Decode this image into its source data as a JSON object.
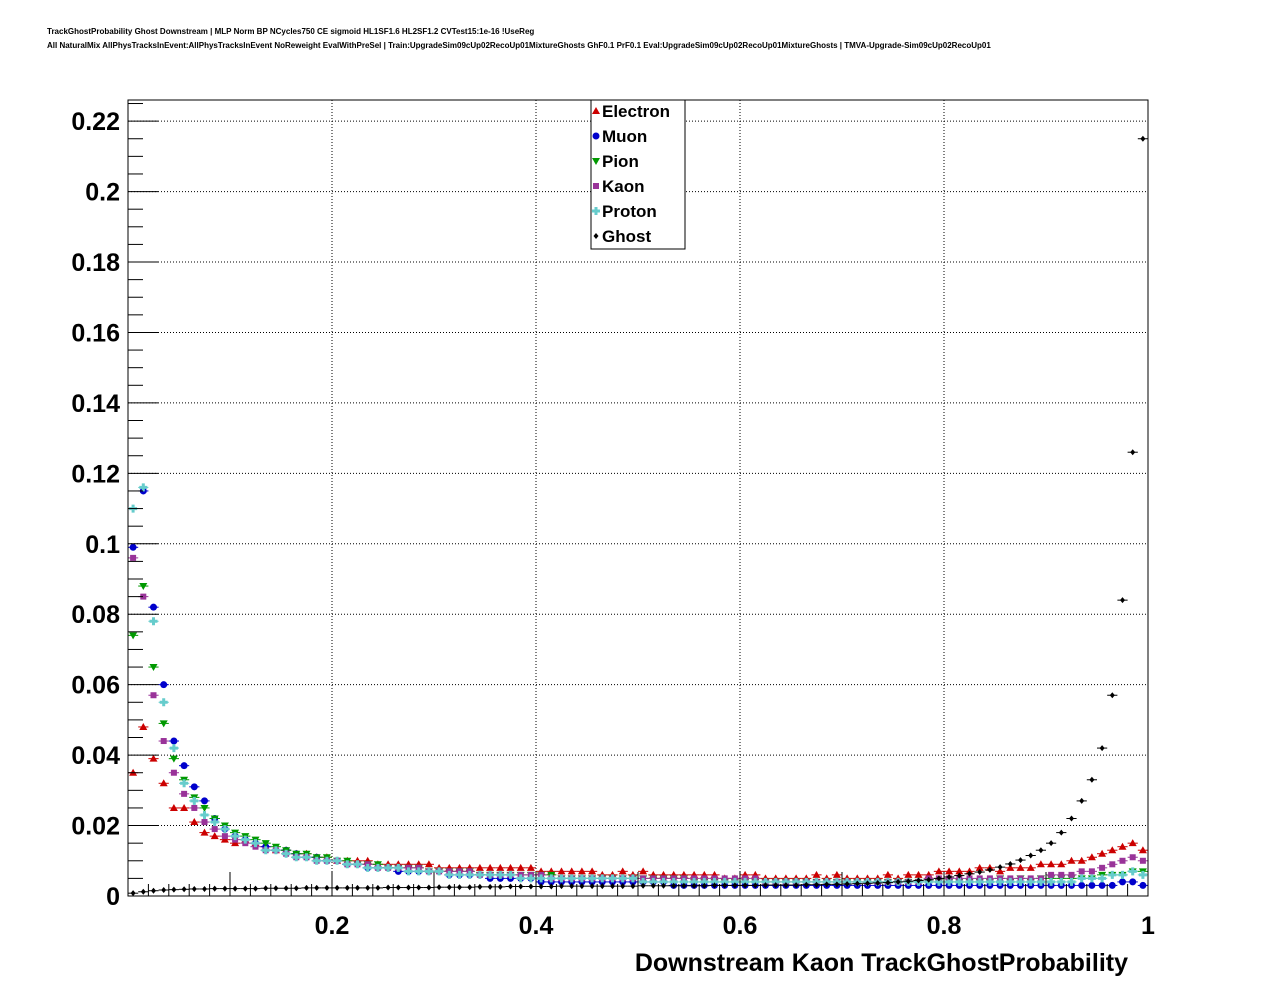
{
  "title_line1": "TrackGhostProbability Ghost Downstream | MLP Norm BP NCycles750 CE sigmoid HL1SF1.6 HL2SF1.2 CVTest15:1e-16 !UseReg",
  "title_line2": "All NaturalMix AllPhysTracksInEvent:AllPhysTracksInEvent NoReweight EvalWithPreSel | Train:UpgradeSim09cUp02RecoUp01MixtureGhosts GhF0.1 PrF0.1 Eval:UpgradeSim09cUp02RecoUp01MixtureGhosts | TMVA-Upgrade-Sim09cUp02RecoUp01",
  "chart_data": {
    "type": "scatter",
    "xlabel": "Downstream Kaon TrackGhostProbability",
    "ylabel": "",
    "xlim": [
      0,
      1
    ],
    "ylim": [
      0,
      0.226
    ],
    "xticks": [
      0.2,
      0.4,
      0.6,
      0.8,
      1.0
    ],
    "xtick_labels": [
      "0.2",
      "0.4",
      "0.6",
      "0.8",
      "1"
    ],
    "yticks": [
      0,
      0.02,
      0.04,
      0.06,
      0.08,
      0.1,
      0.12,
      0.14,
      0.16,
      0.18,
      0.2,
      0.22
    ],
    "ytick_labels": [
      "0",
      "0.02",
      "0.04",
      "0.06",
      "0.08",
      "0.1",
      "0.12",
      "0.14",
      "0.16",
      "0.18",
      "0.2",
      "0.22"
    ],
    "grid": true,
    "legend_position": "top-center",
    "x": [
      0.005,
      0.015,
      0.025,
      0.035,
      0.045,
      0.055,
      0.065,
      0.075,
      0.085,
      0.095,
      0.105,
      0.115,
      0.125,
      0.135,
      0.145,
      0.155,
      0.165,
      0.175,
      0.185,
      0.195,
      0.205,
      0.215,
      0.225,
      0.235,
      0.245,
      0.255,
      0.265,
      0.275,
      0.285,
      0.295,
      0.305,
      0.315,
      0.325,
      0.335,
      0.345,
      0.355,
      0.365,
      0.375,
      0.385,
      0.395,
      0.405,
      0.415,
      0.425,
      0.435,
      0.445,
      0.455,
      0.465,
      0.475,
      0.485,
      0.495,
      0.505,
      0.515,
      0.525,
      0.535,
      0.545,
      0.555,
      0.565,
      0.575,
      0.585,
      0.595,
      0.605,
      0.615,
      0.625,
      0.635,
      0.645,
      0.655,
      0.665,
      0.675,
      0.685,
      0.695,
      0.705,
      0.715,
      0.725,
      0.735,
      0.745,
      0.755,
      0.765,
      0.775,
      0.785,
      0.795,
      0.805,
      0.815,
      0.825,
      0.835,
      0.845,
      0.855,
      0.865,
      0.875,
      0.885,
      0.895,
      0.905,
      0.915,
      0.925,
      0.935,
      0.945,
      0.955,
      0.965,
      0.975,
      0.985,
      0.995
    ],
    "series": [
      {
        "name": "Electron",
        "color": "#cc0000",
        "marker": "triangle-up",
        "values": [
          0.035,
          0.048,
          0.039,
          0.032,
          0.025,
          0.025,
          0.021,
          0.018,
          0.017,
          0.016,
          0.015,
          0.016,
          0.015,
          0.014,
          0.013,
          0.013,
          0.012,
          0.012,
          0.011,
          0.011,
          0.01,
          0.01,
          0.01,
          0.01,
          0.009,
          0.009,
          0.009,
          0.009,
          0.009,
          0.009,
          0.008,
          0.008,
          0.008,
          0.008,
          0.008,
          0.008,
          0.008,
          0.008,
          0.008,
          0.008,
          0.007,
          0.007,
          0.007,
          0.007,
          0.007,
          0.007,
          0.006,
          0.006,
          0.007,
          0.006,
          0.007,
          0.006,
          0.006,
          0.006,
          0.006,
          0.006,
          0.006,
          0.006,
          0.005,
          0.005,
          0.006,
          0.006,
          0.005,
          0.005,
          0.005,
          0.005,
          0.005,
          0.006,
          0.005,
          0.006,
          0.005,
          0.005,
          0.005,
          0.005,
          0.006,
          0.005,
          0.006,
          0.006,
          0.006,
          0.007,
          0.007,
          0.007,
          0.007,
          0.008,
          0.008,
          0.007,
          0.008,
          0.008,
          0.008,
          0.009,
          0.009,
          0.009,
          0.01,
          0.01,
          0.011,
          0.012,
          0.013,
          0.014,
          0.015,
          0.013
        ]
      },
      {
        "name": "Muon",
        "color": "#0000cc",
        "marker": "circle",
        "values": [
          0.099,
          0.115,
          0.082,
          0.06,
          0.044,
          0.037,
          0.031,
          0.027,
          0.022,
          0.019,
          0.017,
          0.016,
          0.015,
          0.014,
          0.013,
          0.013,
          0.012,
          0.011,
          0.011,
          0.01,
          0.01,
          0.009,
          0.009,
          0.008,
          0.008,
          0.008,
          0.007,
          0.007,
          0.007,
          0.007,
          0.007,
          0.006,
          0.006,
          0.006,
          0.006,
          0.005,
          0.005,
          0.005,
          0.005,
          0.005,
          0.004,
          0.004,
          0.004,
          0.004,
          0.004,
          0.004,
          0.004,
          0.004,
          0.004,
          0.004,
          0.004,
          0.004,
          0.004,
          0.003,
          0.003,
          0.003,
          0.003,
          0.003,
          0.003,
          0.003,
          0.003,
          0.003,
          0.003,
          0.003,
          0.003,
          0.003,
          0.003,
          0.003,
          0.003,
          0.003,
          0.003,
          0.003,
          0.003,
          0.003,
          0.003,
          0.003,
          0.003,
          0.003,
          0.003,
          0.003,
          0.003,
          0.003,
          0.003,
          0.003,
          0.003,
          0.003,
          0.003,
          0.003,
          0.003,
          0.003,
          0.003,
          0.003,
          0.003,
          0.003,
          0.003,
          0.003,
          0.003,
          0.004,
          0.004,
          0.003
        ]
      },
      {
        "name": "Pion",
        "color": "#009900",
        "marker": "triangle-down",
        "values": [
          0.074,
          0.088,
          0.065,
          0.049,
          0.039,
          0.033,
          0.028,
          0.025,
          0.022,
          0.02,
          0.018,
          0.017,
          0.016,
          0.015,
          0.014,
          0.013,
          0.012,
          0.012,
          0.011,
          0.011,
          0.01,
          0.01,
          0.009,
          0.009,
          0.009,
          0.008,
          0.008,
          0.008,
          0.008,
          0.007,
          0.007,
          0.007,
          0.007,
          0.007,
          0.006,
          0.006,
          0.006,
          0.006,
          0.006,
          0.006,
          0.006,
          0.006,
          0.005,
          0.005,
          0.005,
          0.005,
          0.005,
          0.005,
          0.005,
          0.005,
          0.005,
          0.005,
          0.005,
          0.005,
          0.005,
          0.004,
          0.004,
          0.004,
          0.004,
          0.004,
          0.004,
          0.004,
          0.004,
          0.004,
          0.004,
          0.004,
          0.004,
          0.004,
          0.004,
          0.004,
          0.004,
          0.004,
          0.004,
          0.004,
          0.004,
          0.004,
          0.004,
          0.004,
          0.004,
          0.004,
          0.004,
          0.004,
          0.004,
          0.004,
          0.004,
          0.005,
          0.004,
          0.005,
          0.004,
          0.005,
          0.005,
          0.005,
          0.005,
          0.005,
          0.005,
          0.006,
          0.006,
          0.006,
          0.007,
          0.007
        ]
      },
      {
        "name": "Kaon",
        "color": "#993399",
        "marker": "square",
        "values": [
          0.096,
          0.085,
          0.057,
          0.044,
          0.035,
          0.029,
          0.025,
          0.021,
          0.019,
          0.017,
          0.016,
          0.015,
          0.014,
          0.013,
          0.013,
          0.012,
          0.011,
          0.011,
          0.01,
          0.01,
          0.01,
          0.009,
          0.009,
          0.009,
          0.008,
          0.008,
          0.008,
          0.008,
          0.008,
          0.007,
          0.007,
          0.007,
          0.007,
          0.007,
          0.006,
          0.006,
          0.006,
          0.006,
          0.006,
          0.006,
          0.006,
          0.005,
          0.005,
          0.005,
          0.005,
          0.005,
          0.005,
          0.005,
          0.005,
          0.005,
          0.005,
          0.005,
          0.005,
          0.005,
          0.005,
          0.005,
          0.005,
          0.005,
          0.005,
          0.005,
          0.005,
          0.005,
          0.004,
          0.004,
          0.004,
          0.004,
          0.004,
          0.004,
          0.004,
          0.004,
          0.004,
          0.004,
          0.004,
          0.004,
          0.004,
          0.004,
          0.004,
          0.004,
          0.005,
          0.005,
          0.005,
          0.005,
          0.005,
          0.005,
          0.005,
          0.005,
          0.005,
          0.005,
          0.005,
          0.005,
          0.006,
          0.006,
          0.006,
          0.007,
          0.007,
          0.008,
          0.009,
          0.01,
          0.011,
          0.01
        ]
      },
      {
        "name": "Proton",
        "color": "#66cccc",
        "marker": "cross",
        "values": [
          0.11,
          0.116,
          0.078,
          0.055,
          0.042,
          0.032,
          0.027,
          0.023,
          0.021,
          0.019,
          0.017,
          0.016,
          0.015,
          0.013,
          0.013,
          0.012,
          0.011,
          0.011,
          0.01,
          0.01,
          0.01,
          0.009,
          0.009,
          0.008,
          0.008,
          0.008,
          0.008,
          0.007,
          0.007,
          0.007,
          0.007,
          0.006,
          0.006,
          0.006,
          0.006,
          0.006,
          0.006,
          0.006,
          0.005,
          0.005,
          0.005,
          0.005,
          0.005,
          0.005,
          0.005,
          0.005,
          0.005,
          0.005,
          0.005,
          0.005,
          0.004,
          0.004,
          0.004,
          0.004,
          0.004,
          0.004,
          0.004,
          0.004,
          0.004,
          0.004,
          0.004,
          0.004,
          0.004,
          0.004,
          0.004,
          0.004,
          0.004,
          0.004,
          0.004,
          0.004,
          0.004,
          0.004,
          0.004,
          0.004,
          0.004,
          0.004,
          0.004,
          0.004,
          0.004,
          0.004,
          0.004,
          0.004,
          0.004,
          0.004,
          0.004,
          0.004,
          0.004,
          0.004,
          0.004,
          0.004,
          0.004,
          0.004,
          0.004,
          0.005,
          0.005,
          0.005,
          0.006,
          0.006,
          0.007,
          0.006
        ]
      },
      {
        "name": "Ghost",
        "color": "#000000",
        "marker": "diamond",
        "values": [
          0.0008,
          0.0012,
          0.0015,
          0.0017,
          0.0018,
          0.0019,
          0.002,
          0.002,
          0.0021,
          0.0021,
          0.0021,
          0.0021,
          0.0021,
          0.0022,
          0.0022,
          0.0022,
          0.0022,
          0.0023,
          0.0023,
          0.0023,
          0.0023,
          0.0023,
          0.0023,
          0.0023,
          0.0023,
          0.0024,
          0.0024,
          0.0024,
          0.0024,
          0.0024,
          0.0025,
          0.0025,
          0.0025,
          0.0025,
          0.0026,
          0.0026,
          0.0026,
          0.0027,
          0.0027,
          0.0027,
          0.0027,
          0.0027,
          0.0028,
          0.0028,
          0.0028,
          0.0028,
          0.0028,
          0.0028,
          0.0028,
          0.0028,
          0.0029,
          0.0029,
          0.0029,
          0.0029,
          0.0029,
          0.0029,
          0.0029,
          0.003,
          0.003,
          0.003,
          0.003,
          0.003,
          0.0031,
          0.0031,
          0.0031,
          0.0031,
          0.0032,
          0.0032,
          0.0033,
          0.0033,
          0.0034,
          0.0035,
          0.0036,
          0.0037,
          0.0038,
          0.004,
          0.0042,
          0.0044,
          0.0046,
          0.005,
          0.0054,
          0.0058,
          0.0063,
          0.0068,
          0.0074,
          0.0082,
          0.0091,
          0.0102,
          0.0115,
          0.013,
          0.015,
          0.018,
          0.022,
          0.027,
          0.033,
          0.042,
          0.057,
          0.084,
          0.126,
          0.215
        ]
      }
    ]
  }
}
